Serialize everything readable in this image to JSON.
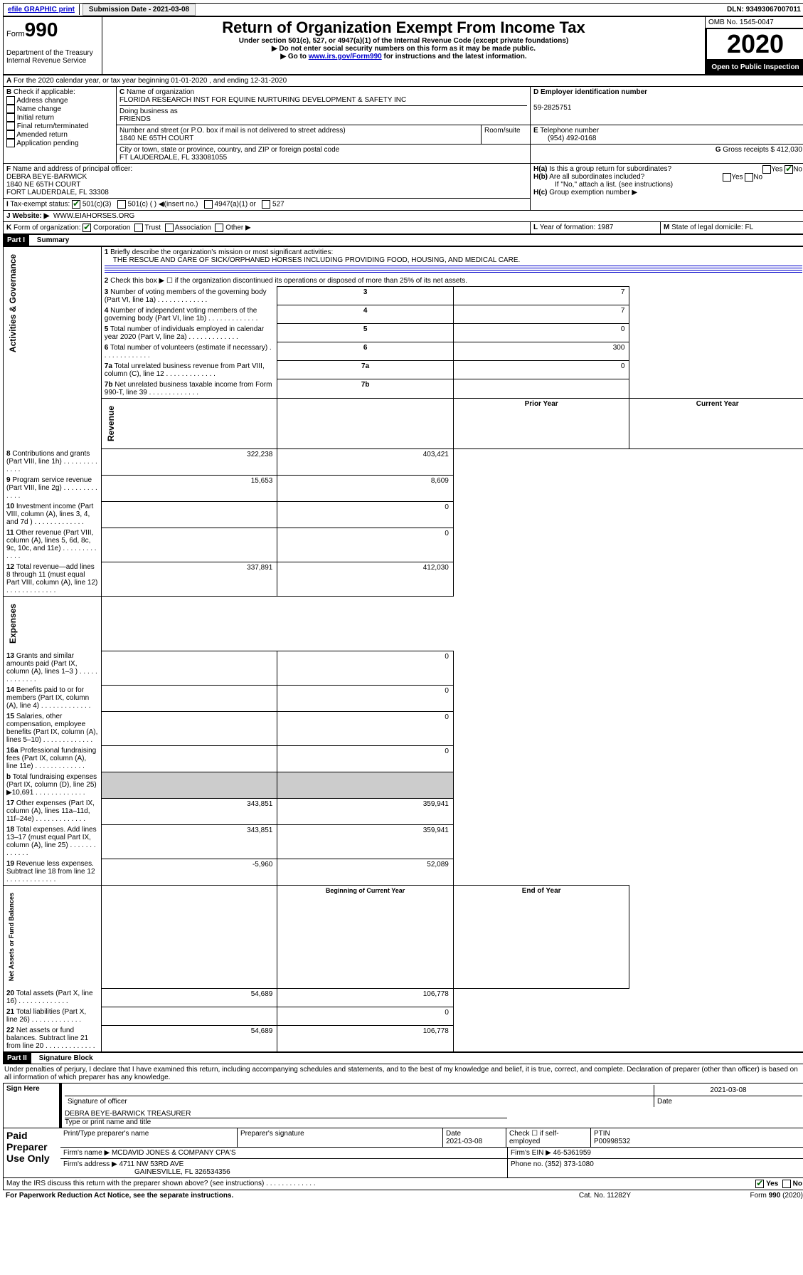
{
  "topbar": {
    "efile": "efile GRAPHIC print",
    "sub_label": "Submission Date - 2021-03-08",
    "dln": "DLN: 93493067007011"
  },
  "header": {
    "form_no_prefix": "Form",
    "form_no": "990",
    "title": "Return of Organization Exempt From Income Tax",
    "subtitle1": "Under section 501(c), 527, or 4947(a)(1) of the Internal Revenue Code (except private foundations)",
    "subtitle2": "▶ Do not enter social security numbers on this form as it may be made public.",
    "subtitle3_pre": "▶ Go to ",
    "subtitle3_link": "www.irs.gov/Form990",
    "subtitle3_post": " for instructions and the latest information.",
    "dept": "Department of the Treasury",
    "irs": "Internal Revenue Service",
    "omb": "OMB No. 1545-0047",
    "year": "2020",
    "open": "Open to Public Inspection"
  },
  "A": {
    "line": "For the 2020 calendar year, or tax year beginning 01-01-2020   , and ending 12-31-2020"
  },
  "B": {
    "label": "Check if applicable:",
    "opts": [
      "Address change",
      "Name change",
      "Initial return",
      "Final return/terminated",
      "Amended return",
      "Application pending"
    ]
  },
  "C": {
    "name_label": "Name of organization",
    "name": "FLORIDA RESEARCH INST FOR EQUINE NURTURING DEVELOPMENT & SAFETY INC",
    "dba_label": "Doing business as",
    "dba": "FRIENDS",
    "addr_label": "Number and street (or P.O. box if mail is not delivered to street address)",
    "room_label": "Room/suite",
    "addr": "1840 NE 65TH COURT",
    "city_label": "City or town, state or province, country, and ZIP or foreign postal code",
    "city": "FT LAUDERDALE, FL  333081055"
  },
  "D": {
    "label": "Employer identification number",
    "val": "59-2825751"
  },
  "E": {
    "label": "Telephone number",
    "val": "(954) 492-0168"
  },
  "G": {
    "label": "Gross receipts $",
    "val": "412,030"
  },
  "F": {
    "label": "Name and address of principal officer:",
    "name": "DEBRA BEYE-BARWICK",
    "addr1": "1840 NE 65TH COURT",
    "addr2": "FORT LAUDERDALE, FL  33308"
  },
  "H": {
    "a": "Is this a group return for subordinates?",
    "b": "Are all subordinates included?",
    "c_note": "If \"No,\" attach a list. (see instructions)",
    "c": "Group exemption number ▶"
  },
  "I": {
    "label": "Tax-exempt status:",
    "opt1": "501(c)(3)",
    "opt2": "501(c) (  ) ◀(insert no.)",
    "opt3": "4947(a)(1) or",
    "opt4": "527"
  },
  "J": {
    "label": "Website: ▶",
    "val": "WWW.EIAHORSES.ORG"
  },
  "K": {
    "label": "Form of organization:",
    "opts": [
      "Corporation",
      "Trust",
      "Association",
      "Other ▶"
    ]
  },
  "L": {
    "label": "Year of formation:",
    "val": "1987"
  },
  "M": {
    "label": "State of legal domicile:",
    "val": "FL"
  },
  "part1": {
    "title": "Part I",
    "subtitle": "Summary",
    "sections": {
      "gov": "Activities & Governance",
      "rev": "Revenue",
      "exp": "Expenses",
      "net": "Net Assets or Fund Balances"
    },
    "l1": "Briefly describe the organization's mission or most significant activities:",
    "l1_val": "THE RESCUE AND CARE OF SICK/ORPHANED HORSES INCLUDING PROVIDING FOOD, HOUSING, AND MEDICAL CARE.",
    "l2": "Check this box ▶ ☐  if the organization discontinued its operations or disposed of more than 25% of its net assets.",
    "prior": "Prior Year",
    "current": "Current Year",
    "begin": "Beginning of Current Year",
    "end": "End of Year",
    "rows_gov": [
      {
        "n": "3",
        "t": "Number of voting members of the governing body (Part VI, line 1a)",
        "v": "7"
      },
      {
        "n": "4",
        "t": "Number of independent voting members of the governing body (Part VI, line 1b)",
        "v": "7"
      },
      {
        "n": "5",
        "t": "Total number of individuals employed in calendar year 2020 (Part V, line 2a)",
        "v": "0"
      },
      {
        "n": "6",
        "t": "Total number of volunteers (estimate if necessary)",
        "v": "300"
      },
      {
        "n": "7a",
        "t": "Total unrelated business revenue from Part VIII, column (C), line 12",
        "v": "0"
      },
      {
        "n": "7b",
        "t": "Net unrelated business taxable income from Form 990-T, line 39",
        "v": ""
      }
    ],
    "rows_rev": [
      {
        "n": "8",
        "t": "Contributions and grants (Part VIII, line 1h)",
        "p": "322,238",
        "c": "403,421"
      },
      {
        "n": "9",
        "t": "Program service revenue (Part VIII, line 2g)",
        "p": "15,653",
        "c": "8,609"
      },
      {
        "n": "10",
        "t": "Investment income (Part VIII, column (A), lines 3, 4, and 7d )",
        "p": "",
        "c": "0"
      },
      {
        "n": "11",
        "t": "Other revenue (Part VIII, column (A), lines 5, 6d, 8c, 9c, 10c, and 11e)",
        "p": "",
        "c": "0"
      },
      {
        "n": "12",
        "t": "Total revenue—add lines 8 through 11 (must equal Part VIII, column (A), line 12)",
        "p": "337,891",
        "c": "412,030"
      }
    ],
    "rows_exp": [
      {
        "n": "13",
        "t": "Grants and similar amounts paid (Part IX, column (A), lines 1–3 )",
        "p": "",
        "c": "0"
      },
      {
        "n": "14",
        "t": "Benefits paid to or for members (Part IX, column (A), line 4)",
        "p": "",
        "c": "0"
      },
      {
        "n": "15",
        "t": "Salaries, other compensation, employee benefits (Part IX, column (A), lines 5–10)",
        "p": "",
        "c": "0"
      },
      {
        "n": "16a",
        "t": "Professional fundraising fees (Part IX, column (A), line 11e)",
        "p": "",
        "c": "0"
      },
      {
        "n": "b",
        "t": "Total fundraising expenses (Part IX, column (D), line 25) ▶10,691",
        "p": "GREY",
        "c": "GREY"
      },
      {
        "n": "17",
        "t": "Other expenses (Part IX, column (A), lines 11a–11d, 11f–24e)",
        "p": "343,851",
        "c": "359,941"
      },
      {
        "n": "18",
        "t": "Total expenses. Add lines 13–17 (must equal Part IX, column (A), line 25)",
        "p": "343,851",
        "c": "359,941"
      },
      {
        "n": "19",
        "t": "Revenue less expenses. Subtract line 18 from line 12",
        "p": "-5,960",
        "c": "52,089"
      }
    ],
    "rows_net": [
      {
        "n": "20",
        "t": "Total assets (Part X, line 16)",
        "p": "54,689",
        "c": "106,778"
      },
      {
        "n": "21",
        "t": "Total liabilities (Part X, line 26)",
        "p": "",
        "c": "0"
      },
      {
        "n": "22",
        "t": "Net assets or fund balances. Subtract line 21 from line 20",
        "p": "54,689",
        "c": "106,778"
      }
    ]
  },
  "part2": {
    "title": "Part II",
    "subtitle": "Signature Block",
    "decl": "Under penalties of perjury, I declare that I have examined this return, including accompanying schedules and statements, and to the best of my knowledge and belief, it is true, correct, and complete. Declaration of preparer (other than officer) is based on all information of which preparer has any knowledge.",
    "sign_here": "Sign Here",
    "sig_officer": "Signature of officer",
    "date": "Date",
    "date_val": "2021-03-08",
    "name_title": "DEBRA BEYE-BARWICK  TREASURER",
    "name_title_label": "Type or print name and title",
    "paid": "Paid Preparer Use Only",
    "prep_name_label": "Print/Type preparer's name",
    "prep_sig_label": "Preparer's signature",
    "prep_date_label": "Date",
    "prep_date": "2021-03-08",
    "check_label": "Check ☐ if self-employed",
    "ptin_label": "PTIN",
    "ptin": "P00998532",
    "firm_name_label": "Firm's name    ▶",
    "firm_name": "MCDAVID JONES & COMPANY CPA'S",
    "firm_ein_label": "Firm's EIN ▶",
    "firm_ein": "46-5361959",
    "firm_addr_label": "Firm's address ▶",
    "firm_addr1": "4711 NW 53RD AVE",
    "firm_addr2": "GAINESVILLE, FL  326534356",
    "phone_label": "Phone no.",
    "phone": "(352) 373-1080",
    "discuss": "May the IRS discuss this return with the preparer shown above? (see instructions)",
    "yes": "Yes",
    "no": "No"
  },
  "footer": {
    "l": "For Paperwork Reduction Act Notice, see the separate instructions.",
    "c": "Cat. No. 11282Y",
    "r": "Form 990 (2020)"
  }
}
